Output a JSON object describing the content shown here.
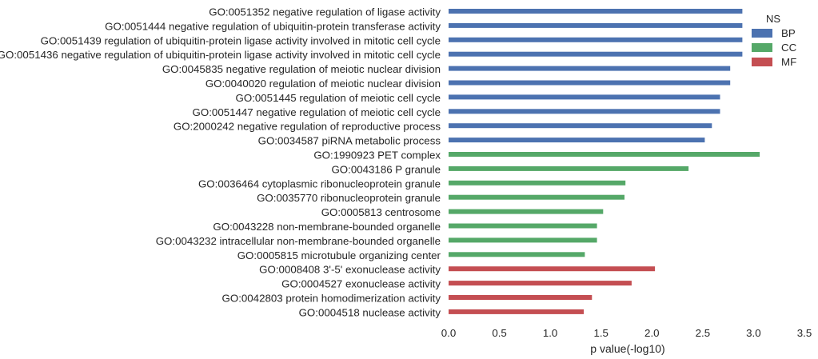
{
  "chart_data": {
    "type": "bar",
    "orientation": "horizontal",
    "xlabel": "p value(-log10)",
    "xlim": [
      0,
      3.5
    ],
    "xticks": [
      "0.0",
      "0.5",
      "1.0",
      "1.5",
      "2.0",
      "2.5",
      "3.0",
      "3.5"
    ],
    "grid": false,
    "legend": {
      "title": "NS",
      "placement": "top-right",
      "entries": [
        {
          "name": "BP",
          "color": "#4c72b0"
        },
        {
          "name": "CC",
          "color": "#55a868"
        },
        {
          "name": "MF",
          "color": "#c44e52"
        }
      ]
    },
    "bars": [
      {
        "label": "GO:0051352 negative regulation of ligase activity",
        "ns": "BP",
        "value": 2.89
      },
      {
        "label": "GO:0051444 negative regulation of ubiquitin-protein transferase activity",
        "ns": "BP",
        "value": 2.89
      },
      {
        "label": "GO:0051439 regulation of ubiquitin-protein ligase activity involved in mitotic cell cycle",
        "ns": "BP",
        "value": 2.89
      },
      {
        "label": "GO:0051436 negative regulation of ubiquitin-protein ligase activity involved in mitotic cell cycle",
        "ns": "BP",
        "value": 2.89
      },
      {
        "label": "GO:0045835 negative regulation of meiotic nuclear division",
        "ns": "BP",
        "value": 2.77
      },
      {
        "label": "GO:0040020 regulation of meiotic nuclear division",
        "ns": "BP",
        "value": 2.77
      },
      {
        "label": "GO:0051445 regulation of meiotic cell cycle",
        "ns": "BP",
        "value": 2.67
      },
      {
        "label": "GO:0051447 negative regulation of meiotic cell cycle",
        "ns": "BP",
        "value": 2.67
      },
      {
        "label": "GO:2000242 negative regulation of reproductive process",
        "ns": "BP",
        "value": 2.59
      },
      {
        "label": "GO:0034587 piRNA metabolic process",
        "ns": "BP",
        "value": 2.52
      },
      {
        "label": "GO:1990923 PET complex",
        "ns": "CC",
        "value": 3.06
      },
      {
        "label": "GO:0043186 P granule",
        "ns": "CC",
        "value": 2.36
      },
      {
        "label": "GO:0036464 cytoplasmic ribonucleoprotein granule",
        "ns": "CC",
        "value": 1.74
      },
      {
        "label": "GO:0035770 ribonucleoprotein granule",
        "ns": "CC",
        "value": 1.73
      },
      {
        "label": "GO:0005813 centrosome",
        "ns": "CC",
        "value": 1.52
      },
      {
        "label": "GO:0043228 non-membrane-bounded organelle",
        "ns": "CC",
        "value": 1.46
      },
      {
        "label": "GO:0043232 intracellular non-membrane-bounded organelle",
        "ns": "CC",
        "value": 1.46
      },
      {
        "label": "GO:0005815 microtubule organizing center",
        "ns": "CC",
        "value": 1.34
      },
      {
        "label": "GO:0008408 3'-5' exonuclease activity",
        "ns": "MF",
        "value": 2.03
      },
      {
        "label": "GO:0004527 exonuclease activity",
        "ns": "MF",
        "value": 1.8
      },
      {
        "label": "GO:0042803 protein homodimerization activity",
        "ns": "MF",
        "value": 1.41
      },
      {
        "label": "GO:0004518 nuclease activity",
        "ns": "MF",
        "value": 1.33
      }
    ]
  }
}
